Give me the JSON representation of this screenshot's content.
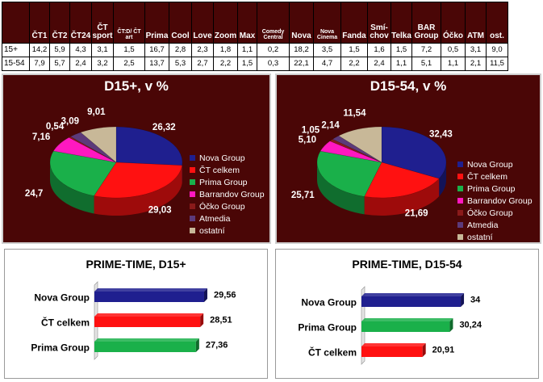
{
  "table": {
    "headers": [
      {
        "label": "ČT1"
      },
      {
        "label": "ČT2"
      },
      {
        "label": "ČT24"
      },
      {
        "label": "ČT sport"
      },
      {
        "label": "ČT:D/ ČT art"
      },
      {
        "label": "Prima"
      },
      {
        "label": "Cool"
      },
      {
        "label": "Love"
      },
      {
        "label": "Zoom"
      },
      {
        "label": "Max"
      },
      {
        "label": "Comedy Central"
      },
      {
        "label": "Nova"
      },
      {
        "label": "Nova Cinema"
      },
      {
        "label": "Fanda"
      },
      {
        "label": "Smí-chov"
      },
      {
        "label": "Telka"
      },
      {
        "label": "BAR Group"
      },
      {
        "label": "Óčko"
      },
      {
        "label": "ATM"
      },
      {
        "label": "ost."
      }
    ],
    "rows": [
      {
        "label": "15+",
        "values": [
          "14,2",
          "5,9",
          "4,3",
          "3,1",
          "1,5",
          "16,7",
          "2,8",
          "2,3",
          "1,8",
          "1,1",
          "0,2",
          "18,2",
          "3,5",
          "1,5",
          "1,6",
          "1,5",
          "7,2",
          "0,5",
          "3,1",
          "9,0"
        ]
      },
      {
        "label": "15-54",
        "values": [
          "7,9",
          "5,7",
          "2,4",
          "3,2",
          "2,5",
          "13,7",
          "5,3",
          "2,7",
          "2,2",
          "1,5",
          "0,3",
          "22,1",
          "4,7",
          "2,2",
          "2,4",
          "1,1",
          "5,1",
          "1,1",
          "2,1",
          "11,5"
        ]
      }
    ]
  },
  "chart_data": [
    {
      "type": "pie",
      "title": "D15+, v %",
      "slices": [
        {
          "name": "Nova Group",
          "value": 26.32,
          "label": "26,32",
          "color": "#1f1f8f"
        },
        {
          "name": "ČT celkem",
          "value": 29.03,
          "label": "29,03",
          "color": "#ff1111"
        },
        {
          "name": "Prima Group",
          "value": 24.7,
          "label": "24,7",
          "color": "#1ab04a"
        },
        {
          "name": "Barrandov Group",
          "value": 7.16,
          "label": "7,16",
          "color": "#ff18c0"
        },
        {
          "name": "Óčko Group",
          "value": 0.54,
          "label": "0,54",
          "color": "#8a1a1a"
        },
        {
          "name": "Atmedia",
          "value": 3.09,
          "label": "3,09",
          "color": "#5c3a7a"
        },
        {
          "name": "ostatní",
          "value": 9.01,
          "label": "9,01",
          "color": "#c8b898"
        }
      ]
    },
    {
      "type": "pie",
      "title": "D15-54, v %",
      "slices": [
        {
          "name": "Nova Group",
          "value": 32.43,
          "label": "32,43",
          "color": "#1f1f8f"
        },
        {
          "name": "ČT celkem",
          "value": 21.69,
          "label": "21,69",
          "color": "#ff1111"
        },
        {
          "name": "Prima Group",
          "value": 25.71,
          "label": "25,71",
          "color": "#1ab04a"
        },
        {
          "name": "Barrandov Group",
          "value": 5.1,
          "label": "5,10",
          "color": "#ff18c0"
        },
        {
          "name": "Óčko Group",
          "value": 1.05,
          "label": "1,05",
          "color": "#8a1a1a"
        },
        {
          "name": "Atmedia",
          "value": 2.14,
          "label": "2,14",
          "color": "#5c3a7a"
        },
        {
          "name": "ostatní",
          "value": 11.54,
          "label": "11,54",
          "color": "#c8b898"
        }
      ]
    },
    {
      "type": "bar",
      "orientation": "horizontal",
      "title": "PRIME-TIME, D15+",
      "categories": [
        "Nova Group",
        "ČT celkem",
        "Prima Group"
      ],
      "values": [
        29.56,
        28.51,
        27.36
      ],
      "labels": [
        "29,56",
        "28,51",
        "27,36"
      ],
      "colors": [
        "#1f1f8f",
        "#ff1111",
        "#1ab04a"
      ],
      "xlim": [
        0,
        40
      ]
    },
    {
      "type": "bar",
      "orientation": "horizontal",
      "title": "PRIME-TIME, D15-54",
      "categories": [
        "Nova Group",
        "Prima Group",
        "ČT celkem"
      ],
      "values": [
        34,
        30.24,
        20.91
      ],
      "labels": [
        "34",
        "30,24",
        "20,91"
      ],
      "colors": [
        "#1f1f8f",
        "#1ab04a",
        "#ff1111"
      ],
      "xlim": [
        0,
        42
      ]
    }
  ]
}
